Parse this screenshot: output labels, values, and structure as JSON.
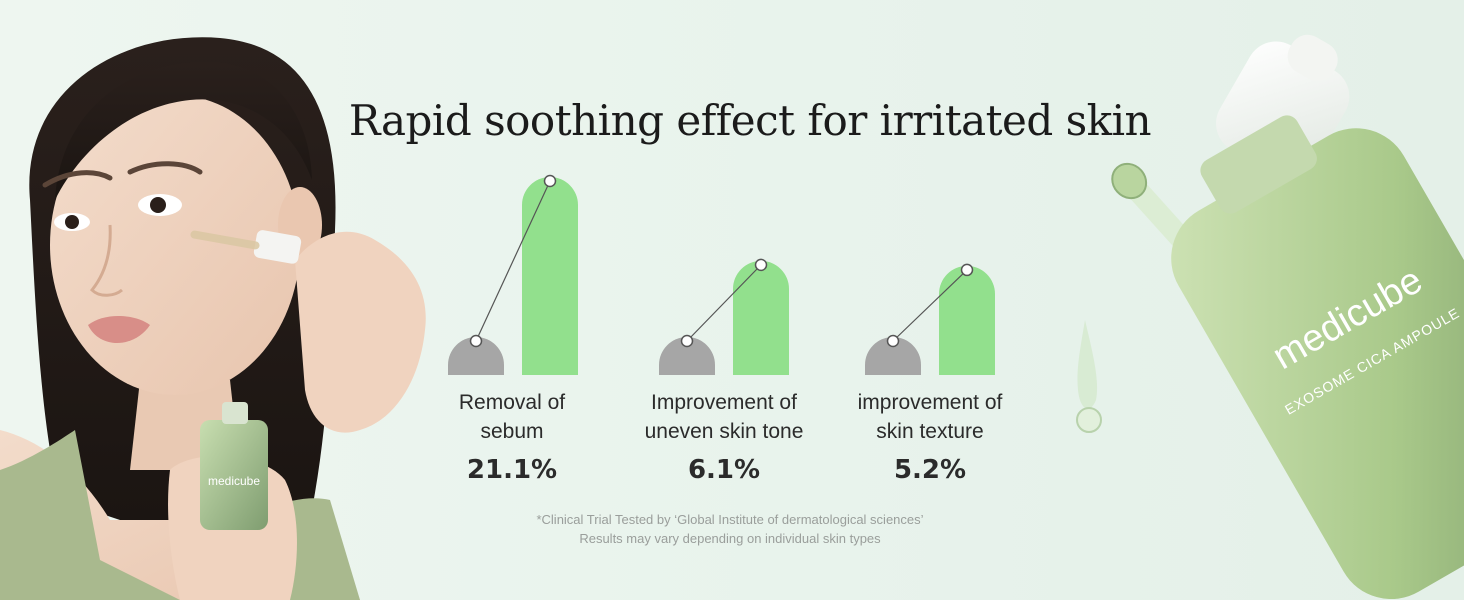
{
  "headline": "Rapid soothing effect for irritated skin",
  "chart_data": {
    "type": "bar",
    "categories": [
      "Removal of sebum",
      "Improvement of uneven skin tone",
      "improvement of skin texture"
    ],
    "value_labels": [
      "21.1%",
      "6.1%",
      "5.2%"
    ],
    "values": [
      21.1,
      6.1,
      5.2
    ],
    "colors": {
      "before": "#a6a6a6",
      "after": "#92e08d",
      "connector": "#555555"
    }
  },
  "stats": [
    {
      "label_line1": "Removal of",
      "label_line2": "sebum",
      "value": "21.1%"
    },
    {
      "label_line1": "Improvement of",
      "label_line2": "uneven skin tone",
      "value": "6.1%"
    },
    {
      "label_line1": "improvement of",
      "label_line2": "skin texture",
      "value": "5.2%"
    }
  ],
  "footnote": {
    "line1": "*Clinical Trial Tested by ‘Global Institute of dermatological sciences’",
    "line2": "Results may vary depending on individual skin types"
  },
  "product": {
    "brand": "medicube",
    "name": "EXOSOME CICA AMPOULE",
    "small_bottle_brand": "medicube"
  }
}
